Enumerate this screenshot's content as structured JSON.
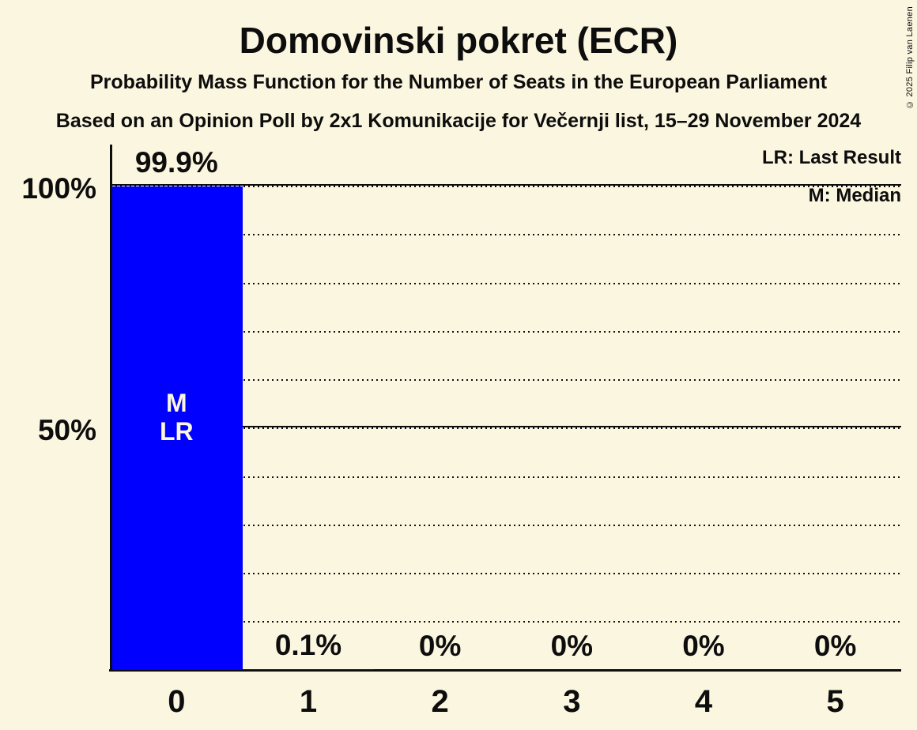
{
  "header": {
    "title": "Domovinski pokret (ECR)",
    "subtitle": "Probability Mass Function for the Number of Seats in the European Parliament",
    "source_line": "Based on an Opinion Poll by 2x1 Komunikacije for Večernji list, 15–29 November 2024"
  },
  "legend": {
    "lr": "LR: Last Result",
    "m": "M: Median"
  },
  "copyright": "© 2025 Filip van Laenen",
  "colors": {
    "background": "#fbf6df",
    "bar": "#0000ff",
    "text": "#0d0d0d",
    "bar_label": "#fbf6df"
  },
  "chart_data": {
    "type": "bar",
    "title": "Domovinski pokret (ECR)",
    "xlabel": "",
    "ylabel": "",
    "categories": [
      "0",
      "1",
      "2",
      "3",
      "4",
      "5"
    ],
    "values": [
      99.9,
      0.1,
      0,
      0,
      0,
      0
    ],
    "value_labels": [
      "99.9%",
      "0.1%",
      "0%",
      "0%",
      "0%",
      "0%"
    ],
    "y_axis": {
      "range": [
        0,
        100
      ],
      "gridline_step": 10,
      "solid_levels": [
        50,
        100
      ],
      "ticks": [
        {
          "label": "100%",
          "value": 100
        },
        {
          "label": "50%",
          "value": 50
        }
      ]
    },
    "grid": "dotted horizontal lines every 10%",
    "legend_position": "top-right",
    "annotations": {
      "median_bar_index": 0,
      "last_result_bar_index": 0,
      "bar_inner_lines": [
        "M",
        "LR"
      ]
    }
  }
}
